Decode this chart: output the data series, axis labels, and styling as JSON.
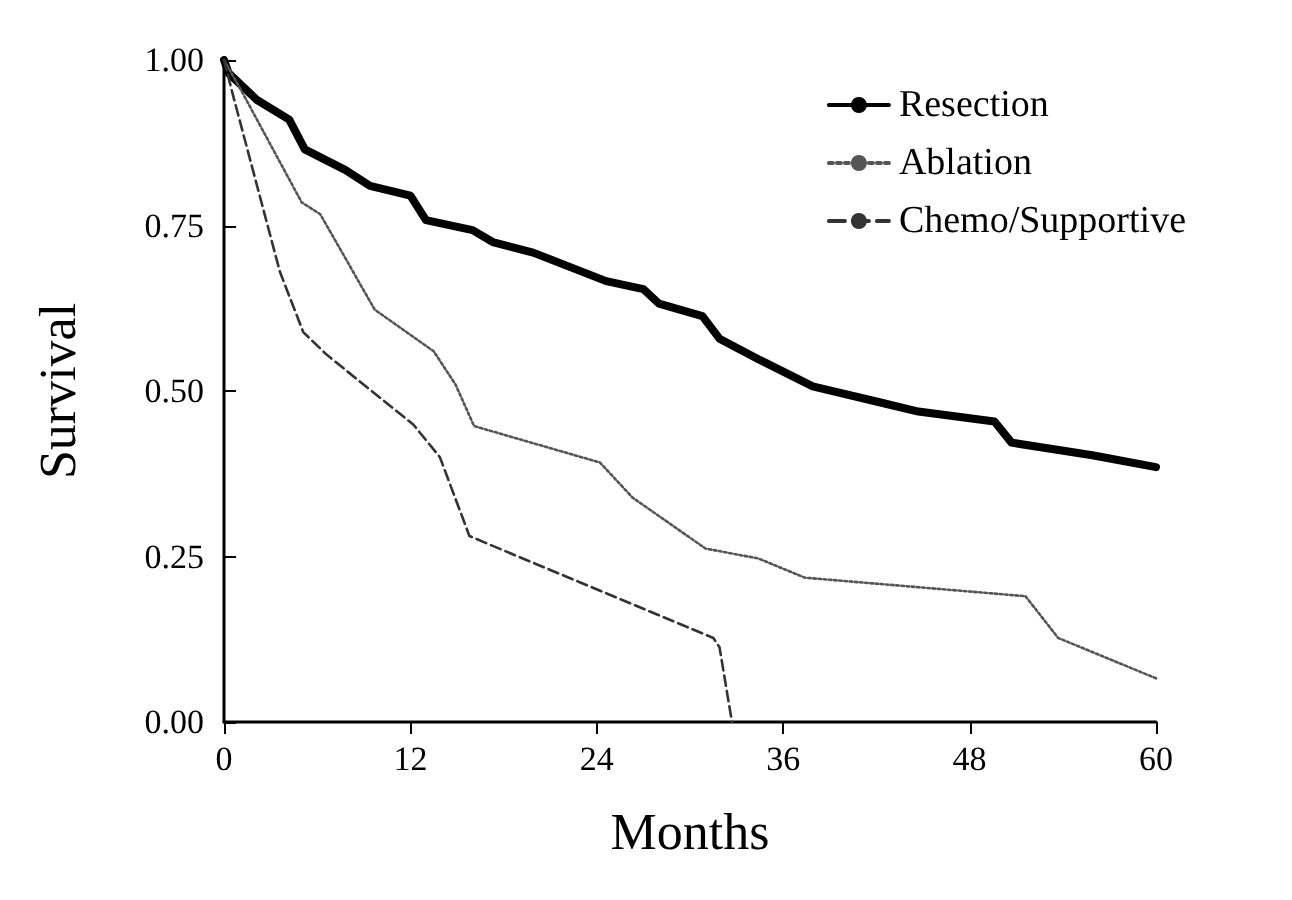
{
  "chart_data": {
    "type": "line",
    "xlabel": "Months",
    "ylabel": "Survival",
    "xlim": [
      0,
      60
    ],
    "xticks": [
      0,
      12,
      24,
      36,
      48,
      60
    ],
    "ylim": [
      0,
      1
    ],
    "yticks": [
      {
        "value": 0,
        "label": "0.00"
      },
      {
        "value": 0.25,
        "label": "0.25"
      },
      {
        "value": 0.5,
        "label": "0.50"
      },
      {
        "value": 0.75,
        "label": "0.75"
      },
      {
        "value": 1,
        "label": "1.00"
      }
    ],
    "grid": false,
    "legend": "top right",
    "marker": "none",
    "series": [
      {
        "name": "Resection",
        "color": "#000000",
        "line_style": "solid",
        "x": [
          0,
          0.3,
          2.1,
          4.2,
          5.2,
          7.8,
          9.4,
          12,
          13,
          16,
          17.3,
          19.9,
          24.6,
          27,
          28,
          30.8,
          31.9,
          34.4,
          37.9,
          42.2,
          44.7,
          49.6,
          50.7,
          55.9,
          60
        ],
        "values": [
          1.0,
          0.98,
          0.94,
          0.91,
          0.865,
          0.834,
          0.81,
          0.795,
          0.758,
          0.743,
          0.725,
          0.709,
          0.666,
          0.654,
          0.632,
          0.613,
          0.579,
          0.548,
          0.507,
          0.483,
          0.469,
          0.454,
          0.422,
          0.403,
          0.385
        ]
      },
      {
        "name": "Ablation",
        "color": "#555555",
        "line_style": "dotted",
        "x": [
          0,
          1.2,
          5.0,
          6.2,
          9.7,
          13.5,
          14.9,
          16.1,
          24.2,
          26.3,
          31,
          34.4,
          37.4,
          51.6,
          53.7,
          60
        ],
        "values": [
          1.0,
          0.95,
          0.785,
          0.767,
          0.623,
          0.56,
          0.51,
          0.447,
          0.392,
          0.339,
          0.262,
          0.247,
          0.218,
          0.19,
          0.127,
          0.066
        ]
      },
      {
        "name": "Chemo/Supportive",
        "color": "#333333",
        "line_style": "dashed",
        "x": [
          0,
          0.6,
          3.6,
          5.1,
          6.6,
          12.2,
          13.9,
          15.8,
          17.3,
          31.5,
          31.9,
          32.7
        ],
        "values": [
          1.0,
          0.945,
          0.68,
          0.589,
          0.555,
          0.449,
          0.4,
          0.281,
          0.266,
          0.127,
          0.113,
          0.0
        ]
      }
    ]
  }
}
